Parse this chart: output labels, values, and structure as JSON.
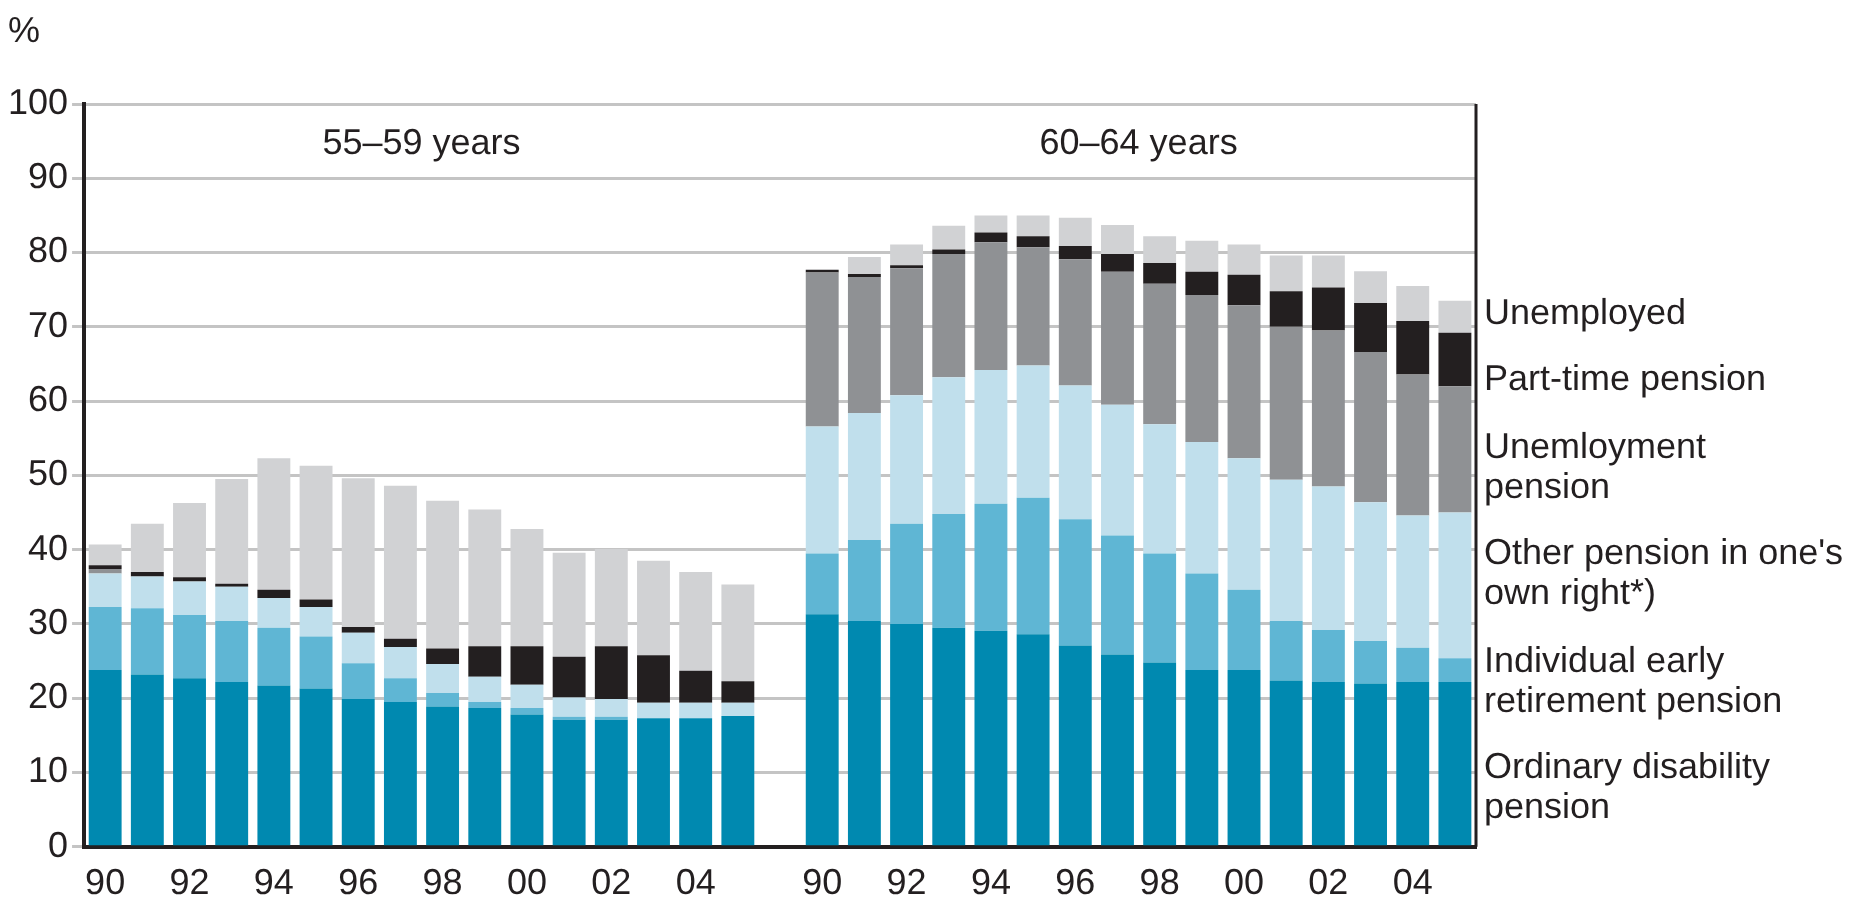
{
  "chart_data": {
    "type": "bar",
    "stacked": true,
    "ylabel": "%",
    "annotations": [
      "55–59 years",
      "60–64 years"
    ],
    "categories": [
      "90",
      null,
      "92",
      null,
      "94",
      null,
      "96",
      null,
      "98",
      null,
      "00",
      null,
      "02",
      null,
      "04",
      null,
      null,
      "90",
      null,
      "92",
      null,
      "94",
      null,
      "96",
      null,
      "98",
      null,
      "00",
      null,
      "02",
      null,
      "04",
      null
    ],
    "ylim": [
      0,
      100
    ],
    "yticks": [
      0,
      10,
      20,
      30,
      40,
      50,
      60,
      70,
      80,
      90,
      100
    ],
    "grid": "y",
    "legend": "right",
    "series": [
      {
        "name": "Ordinary disability pension",
        "color": "#0089b0",
        "values": [
          23.8,
          23.2,
          22.7,
          22.2,
          21.7,
          21.3,
          19.9,
          19.5,
          18.9,
          18.7,
          17.8,
          17.1,
          17.1,
          17.3,
          17.3,
          17.6,
          null,
          31.3,
          30.4,
          30.0,
          29.5,
          29.1,
          28.6,
          27.1,
          25.9,
          24.8,
          23.8,
          23.8,
          22.4,
          22.2,
          22.0,
          22.2,
          22.2
        ]
      },
      {
        "name": "Individual early retirement pension",
        "color": "#5fb6d4",
        "values": [
          8.5,
          8.9,
          8.5,
          8.2,
          7.8,
          7.0,
          4.8,
          3.2,
          1.8,
          0.8,
          0.9,
          0.4,
          0.4,
          0,
          0,
          0,
          null,
          8.2,
          10.9,
          13.5,
          15.3,
          17.1,
          18.4,
          17.0,
          16.0,
          14.7,
          13.0,
          10.8,
          8.0,
          7.0,
          5.7,
          4.6,
          3.2
        ]
      },
      {
        "name": "Other pension in one's own right*)",
        "color": "#c0dfec",
        "values": [
          4.5,
          4.3,
          4.5,
          4.6,
          4.0,
          4.0,
          4.1,
          4.2,
          3.9,
          3.4,
          3.1,
          2.6,
          2.4,
          2.1,
          2.1,
          1.8,
          null,
          17.1,
          17.1,
          17.3,
          18.4,
          18.0,
          17.8,
          18.0,
          17.6,
          17.4,
          17.7,
          17.7,
          19.0,
          19.3,
          18.7,
          17.8,
          19.6
        ]
      },
      {
        "name": "Unemloyment pension",
        "color": "#8f9194",
        "values": [
          0.6,
          0,
          0,
          0,
          0,
          0,
          0,
          0,
          0,
          0,
          0,
          0,
          0,
          0,
          0,
          0,
          null,
          20.7,
          18.3,
          17.1,
          16.6,
          17.2,
          15.9,
          17.0,
          17.9,
          18.9,
          19.8,
          20.6,
          20.6,
          21.0,
          20.2,
          19.0,
          17.0
        ]
      },
      {
        "name": "Part-time pension",
        "color": "#231f20",
        "values": [
          0.5,
          0.6,
          0.6,
          0.4,
          1.1,
          1.0,
          0.8,
          1.1,
          2.1,
          4.1,
          5.2,
          5.5,
          7.1,
          6.4,
          4.3,
          2.9,
          null,
          0.4,
          0.4,
          0.4,
          0.6,
          1.3,
          1.5,
          1.8,
          2.4,
          2.8,
          3.1,
          4.1,
          4.8,
          5.8,
          6.6,
          7.2,
          7.2
        ]
      },
      {
        "name": "Unemployed",
        "color": "#d1d2d4",
        "values": [
          2.8,
          6.5,
          10.0,
          14.1,
          17.7,
          18.0,
          20.0,
          20.6,
          19.9,
          18.4,
          15.8,
          14.0,
          13.1,
          12.7,
          13.3,
          13.0,
          null,
          0,
          2.3,
          2.8,
          3.2,
          2.3,
          2.8,
          3.8,
          3.9,
          3.6,
          4.2,
          4.1,
          4.8,
          4.3,
          4.3,
          4.7,
          4.3
        ]
      }
    ]
  }
}
